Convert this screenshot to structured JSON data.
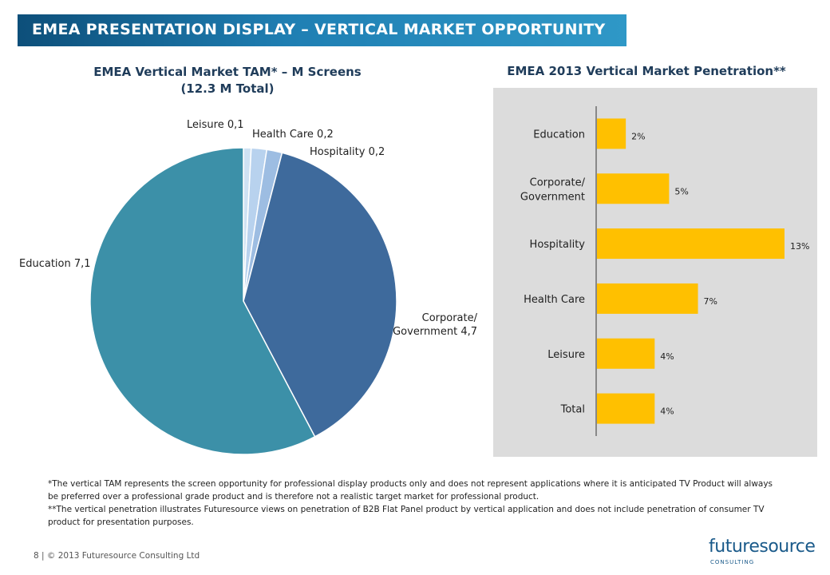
{
  "header": {
    "title": "EMEA PRESENTATION DISPLAY – VERTICAL MARKET OPPORTUNITY"
  },
  "chart_data": [
    {
      "type": "pie",
      "title": "EMEA Vertical Market TAM* – M Screens",
      "subtitle": "(12.3 M Total)",
      "slices": [
        {
          "label": "Leisure 0,1",
          "value": 0.1,
          "color": "#cfe2f3"
        },
        {
          "label": "Health Care 0,2",
          "value": 0.2,
          "color": "#b8d2ee"
        },
        {
          "label": "Hospitality 0,2",
          "value": 0.2,
          "color": "#9dbde2"
        },
        {
          "label": "Corporate/ Government 4,7",
          "value": 4.7,
          "color": "#3e6a9c"
        },
        {
          "label": "Education 7,1",
          "value": 7.1,
          "color": "#3c90a8"
        }
      ]
    },
    {
      "type": "bar",
      "orientation": "horizontal",
      "title": "EMEA 2013 Vertical Market Penetration**",
      "categories": [
        "Education",
        "Corporate/ Government",
        "Hospitality",
        "Health Care",
        "Leisure",
        "Total"
      ],
      "values": [
        2,
        5,
        13,
        7,
        4,
        4
      ],
      "data_labels": [
        "2%",
        "5%",
        "13%",
        "7%",
        "4%",
        "4%"
      ],
      "bar_color": "#ffc000",
      "xlim": [
        0,
        14
      ]
    }
  ],
  "notes": {
    "line1": "*The vertical TAM represents the screen opportunity for professional display products only and does not represent applications where it is anticipated TV Product will always be preferred over a professional grade product and is therefore not a realistic target market for professional product.",
    "line2": "**The vertical penetration illustrates Futuresource views on penetration of B2B Flat Panel product by vertical application and does not include penetration of consumer TV product for presentation purposes."
  },
  "footer": {
    "text": "8 | © 2013 Futuresource Consulting Ltd"
  },
  "logo": {
    "name": "futuresource",
    "sub": "CONSULTING"
  }
}
